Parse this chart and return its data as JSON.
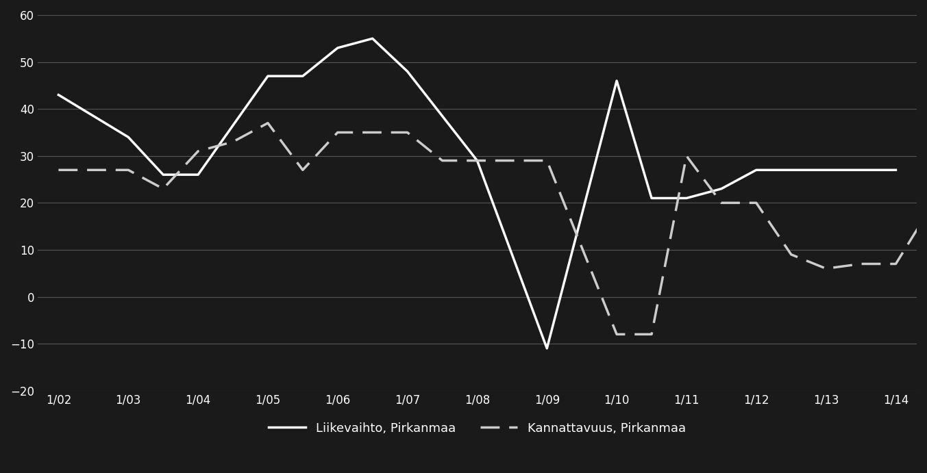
{
  "x_labels": [
    "1/02",
    "1/03",
    "1/04",
    "1/05",
    "1/06",
    "1/07",
    "1/08",
    "1/09",
    "1/10",
    "1/11",
    "1/12",
    "1/13",
    "1/14"
  ],
  "background_color": "#1a1a1a",
  "line1_color": "#ffffff",
  "line2_color": "#cccccc",
  "grid_color": "#555555",
  "text_color": "#ffffff",
  "ylim": [
    -20,
    60
  ],
  "yticks": [
    -20,
    -10,
    0,
    10,
    20,
    30,
    40,
    50,
    60
  ],
  "legend_label1": "Liikevaihto, Pirkanmaa",
  "legend_label2": "Kannattavuus, Pirkanmaa",
  "liikevaihto_x": [
    0,
    1,
    1.5,
    2,
    3,
    3.5,
    4,
    4.5,
    5,
    6,
    7,
    8,
    8.5,
    9,
    9.5,
    10,
    11,
    12
  ],
  "liikevaihto_y": [
    43,
    34,
    26,
    26,
    47,
    47,
    53,
    55,
    48,
    29,
    -11,
    46,
    21,
    21,
    23,
    27,
    27,
    27
  ],
  "kannattavuus_x": [
    0,
    0.5,
    1,
    1.5,
    2,
    2.5,
    3,
    3.5,
    4,
    4.5,
    5,
    5.5,
    6,
    6.5,
    7,
    8,
    8.5,
    9,
    9.5,
    10,
    10.5,
    11,
    11.5,
    12,
    12.5
  ],
  "kannattavuus_y": [
    27,
    27,
    27,
    23,
    31,
    33,
    37,
    27,
    35,
    35,
    35,
    29,
    29,
    29,
    29,
    -8,
    -8,
    30,
    20,
    20,
    9,
    6,
    7,
    7,
    19
  ]
}
